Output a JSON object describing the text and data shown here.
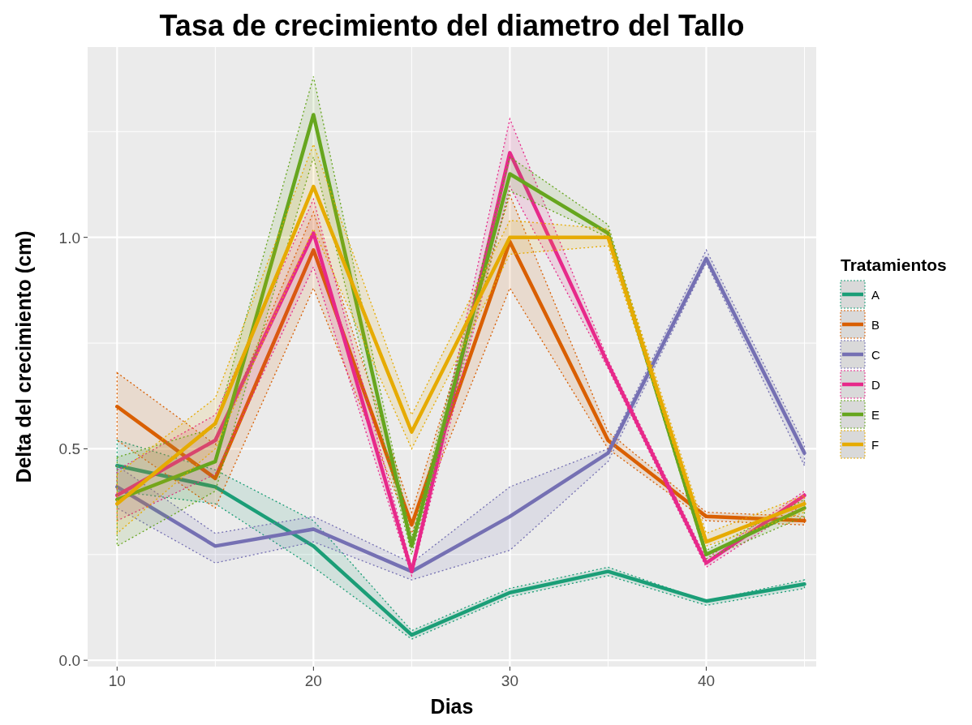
{
  "chart_data": {
    "type": "line",
    "title": "Tasa de crecimiento del diametro del Tallo",
    "xlabel": "Dias",
    "ylabel": "Delta del crecimiento (cm)",
    "legend_title": "Tratamientos",
    "x": [
      10,
      15,
      20,
      25,
      30,
      35,
      40,
      45
    ],
    "xlim": [
      8.5,
      45.6
    ],
    "xticks": [
      10,
      20,
      30,
      40
    ],
    "ylim": [
      -0.015,
      1.45
    ],
    "yticks": [
      {
        "value": 0,
        "label": "0.0"
      },
      {
        "value": 0.5,
        "label": "0.5"
      },
      {
        "value": 1,
        "label": "1.0"
      }
    ],
    "grid": true,
    "legend": "right",
    "line_style": "solid",
    "marker": "none",
    "series": [
      {
        "name": "A",
        "color": "#1b9e77",
        "values": [
          0.46,
          0.41,
          0.27,
          0.06,
          0.16,
          0.21,
          0.14,
          0.18
        ],
        "lower": [
          0.4,
          0.37,
          0.22,
          0.05,
          0.15,
          0.2,
          0.13,
          0.17
        ],
        "upper": [
          0.52,
          0.45,
          0.33,
          0.07,
          0.17,
          0.22,
          0.14,
          0.19
        ]
      },
      {
        "name": "B",
        "color": "#d95f02",
        "values": [
          0.6,
          0.43,
          0.97,
          0.32,
          0.99,
          0.52,
          0.34,
          0.33
        ],
        "lower": [
          0.52,
          0.36,
          0.88,
          0.3,
          0.88,
          0.5,
          0.33,
          0.32
        ],
        "upper": [
          0.68,
          0.51,
          1.06,
          0.35,
          1.1,
          0.54,
          0.35,
          0.34
        ]
      },
      {
        "name": "C",
        "color": "#7570b3",
        "values": [
          0.41,
          0.27,
          0.31,
          0.21,
          0.34,
          0.49,
          0.95,
          0.49
        ],
        "lower": [
          0.36,
          0.23,
          0.28,
          0.19,
          0.26,
          0.47,
          0.94,
          0.46
        ],
        "upper": [
          0.46,
          0.3,
          0.34,
          0.23,
          0.41,
          0.5,
          0.97,
          0.51
        ]
      },
      {
        "name": "D",
        "color": "#e7298a",
        "values": [
          0.39,
          0.52,
          1.01,
          0.21,
          1.2,
          0.7,
          0.23,
          0.39
        ],
        "lower": [
          0.33,
          0.44,
          0.93,
          0.2,
          1.12,
          0.69,
          0.22,
          0.37
        ],
        "upper": [
          0.45,
          0.58,
          1.09,
          0.22,
          1.28,
          0.71,
          0.24,
          0.4
        ]
      },
      {
        "name": "E",
        "color": "#66a61e",
        "values": [
          0.38,
          0.47,
          1.29,
          0.27,
          1.15,
          1.01,
          0.25,
          0.36
        ],
        "lower": [
          0.27,
          0.4,
          1.19,
          0.25,
          1.11,
          1.0,
          0.24,
          0.34
        ],
        "upper": [
          0.48,
          0.55,
          1.38,
          0.29,
          1.19,
          1.03,
          0.26,
          0.38
        ]
      },
      {
        "name": "F",
        "color": "#e6ab02",
        "values": [
          0.37,
          0.56,
          1.12,
          0.54,
          1.0,
          1.0,
          0.28,
          0.37
        ],
        "lower": [
          0.3,
          0.5,
          1.02,
          0.5,
          0.96,
          0.98,
          0.27,
          0.35
        ],
        "upper": [
          0.44,
          0.62,
          1.22,
          0.58,
          1.04,
          1.02,
          0.3,
          0.39
        ]
      }
    ]
  }
}
